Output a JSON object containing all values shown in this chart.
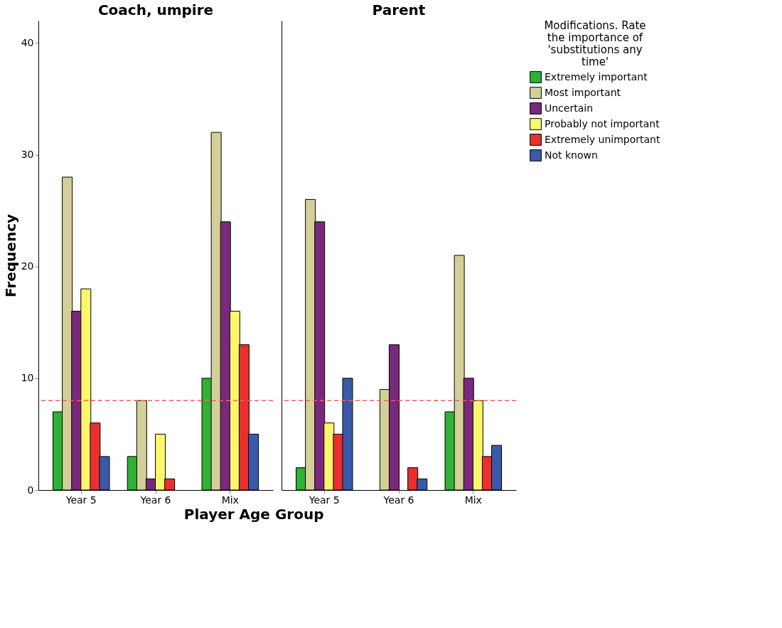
{
  "chart_data": [
    {
      "type": "bar",
      "title": "Coach, umpire",
      "xlabel": "Player Age Group",
      "ylabel": "Frequency",
      "categories": [
        "Year 5",
        "Year 6",
        "Mix"
      ],
      "series": [
        {
          "name": "Extremely important",
          "color": "#2eb135",
          "values": [
            7,
            3,
            10
          ]
        },
        {
          "name": "Most important",
          "color": "#d4cf98",
          "values": [
            28,
            8,
            32
          ]
        },
        {
          "name": "Uncertain",
          "color": "#7a287c",
          "values": [
            16,
            1,
            24
          ]
        },
        {
          "name": "Probably not important",
          "color": "#fbf66c",
          "values": [
            18,
            5,
            16
          ]
        },
        {
          "name": "Extremely unimportant",
          "color": "#ea2f30",
          "values": [
            6,
            1,
            13
          ]
        },
        {
          "name": "Not known",
          "color": "#3b59a9",
          "values": [
            3,
            null,
            5
          ]
        }
      ],
      "ylim": [
        0,
        42
      ],
      "yticks": [
        0,
        10,
        20,
        30,
        40
      ],
      "grid": false,
      "legend": "right",
      "legend_title": "Modifications. Rate\nthe importance of\n'substitutions any\ntime'",
      "ref_lines": [
        {
          "axis": "y",
          "value": 8,
          "color": "#f06060",
          "line_style": "dashed"
        }
      ]
    },
    {
      "type": "bar",
      "title": "Parent",
      "categories": [
        "Year 5",
        "Year 6",
        "Mix"
      ],
      "series": [
        {
          "color": "#2eb135",
          "values": [
            2,
            null,
            7
          ]
        },
        {
          "color": "#d4cf98",
          "values": [
            26,
            9,
            21
          ]
        },
        {
          "color": "#7a287c",
          "values": [
            24,
            13,
            10
          ]
        },
        {
          "color": "#fbf66c",
          "values": [
            6,
            null,
            8
          ]
        },
        {
          "color": "#ea2f30",
          "values": [
            5,
            2,
            3
          ]
        },
        {
          "color": "#3b59a9",
          "values": [
            10,
            1,
            4
          ]
        }
      ],
      "ylim": [
        0,
        42
      ],
      "yticks": [
        0,
        10,
        20,
        30,
        40
      ],
      "grid": false,
      "tick_labels": "x",
      "ref_lines": [
        {
          "axis": "y",
          "value": 8,
          "color": "#f06060",
          "line_style": "dashed"
        }
      ]
    }
  ]
}
